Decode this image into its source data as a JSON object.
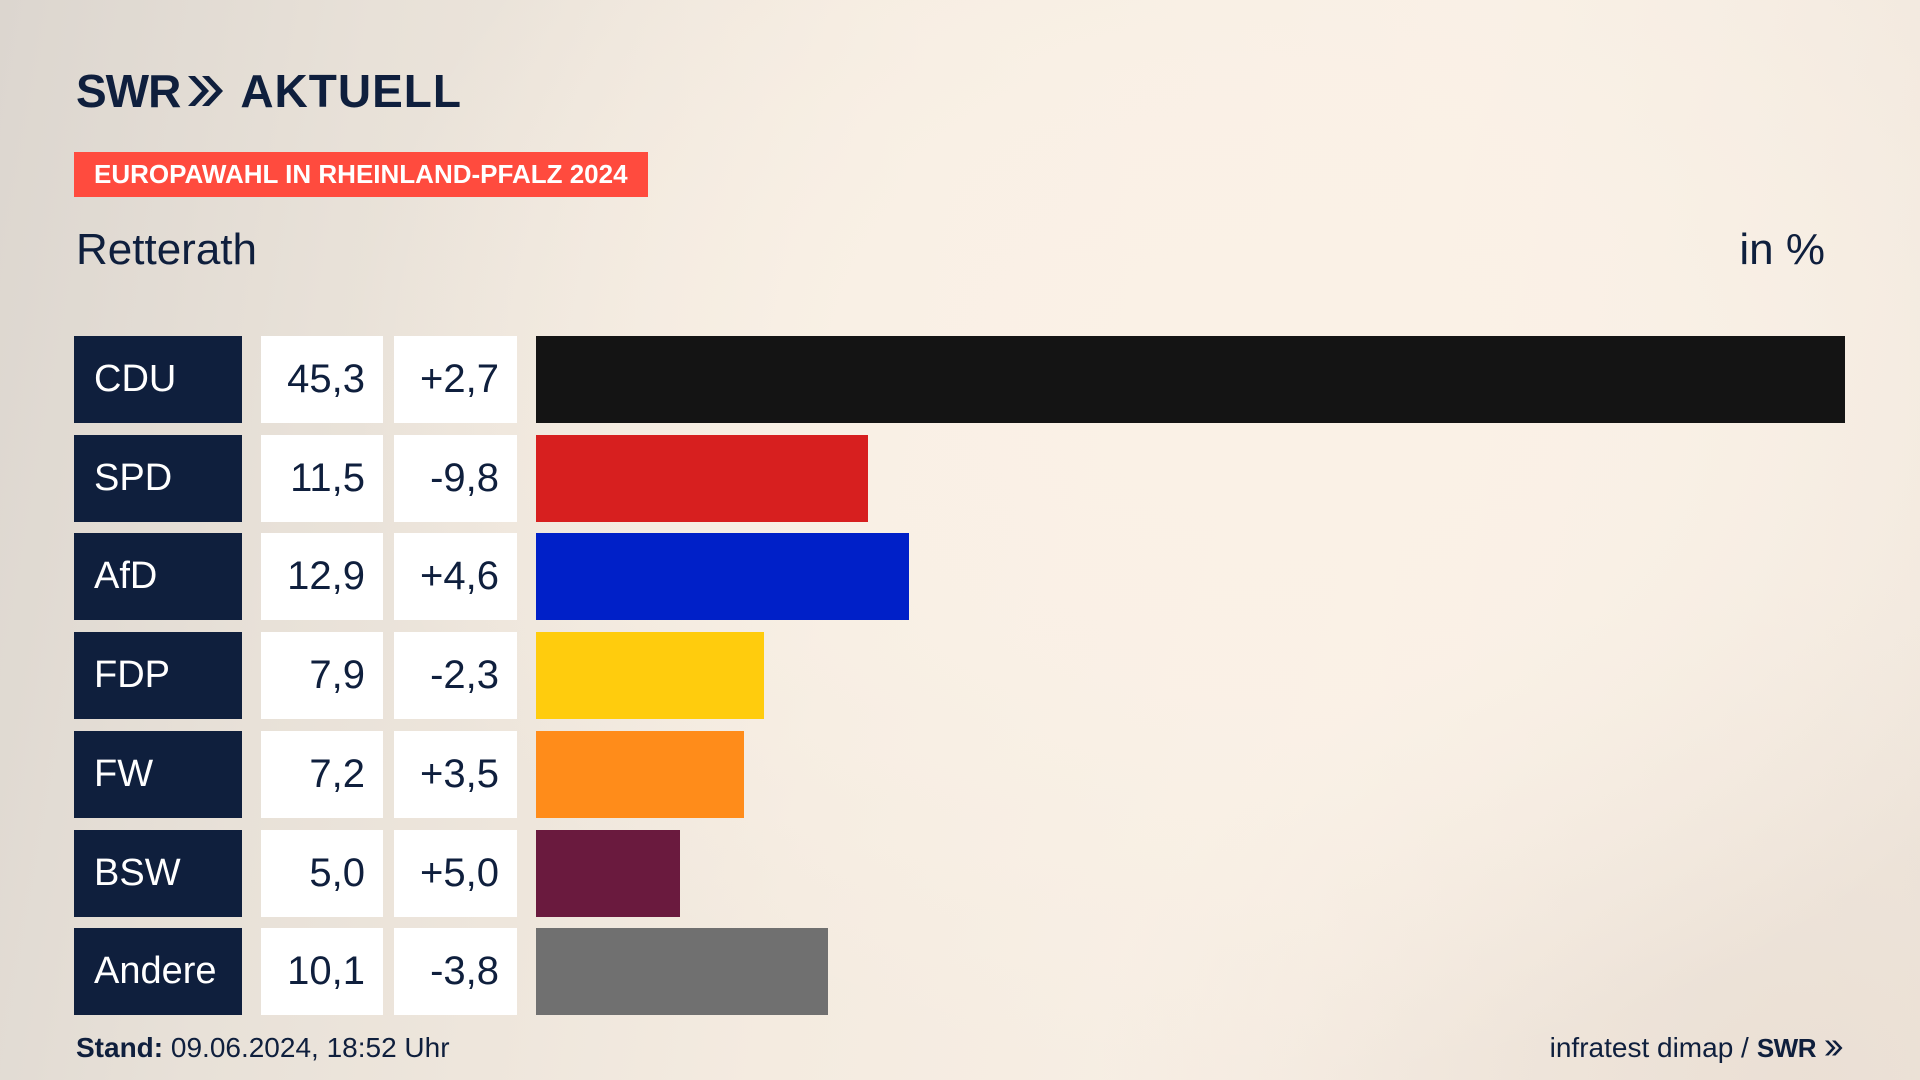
{
  "header": {
    "logo_swr": "SWR",
    "logo_aktuell": "AKTUELL",
    "banner": "EUROPAWAHL IN RHEINLAND-PFALZ 2024",
    "place": "Retterath",
    "unit": "in %"
  },
  "colors": {
    "navy": "#0f1f3d",
    "banner": "#ff4b3e"
  },
  "chart_data": {
    "type": "bar",
    "orientation": "horizontal",
    "title": "Retterath",
    "unit": "in %",
    "categories": [
      "CDU",
      "SPD",
      "AfD",
      "FDP",
      "FW",
      "BSW",
      "Andere"
    ],
    "values": [
      45.3,
      11.5,
      12.9,
      7.9,
      7.2,
      5.0,
      10.1
    ],
    "value_labels": [
      "45,3",
      "11,5",
      "12,9",
      "7,9",
      "7,2",
      "5,0",
      "10,1"
    ],
    "changes": [
      2.7,
      -9.8,
      4.6,
      -2.3,
      3.5,
      5.0,
      -3.8
    ],
    "change_labels": [
      "+2,7",
      "-9,8",
      "+4,6",
      "-2,3",
      "+3,5",
      "+5,0",
      "-3,8"
    ],
    "bar_colors": [
      "#141414",
      "#d71f1f",
      "#0020c8",
      "#ffcc0d",
      "#ff8c1a",
      "#6a1a3e",
      "#707070"
    ],
    "xlim": [
      0,
      45.3
    ]
  },
  "footer": {
    "stand_label": "Stand:",
    "stand_value": "09.06.2024, 18:52 Uhr",
    "source": "infratest dimap /",
    "logo": "SWR"
  }
}
